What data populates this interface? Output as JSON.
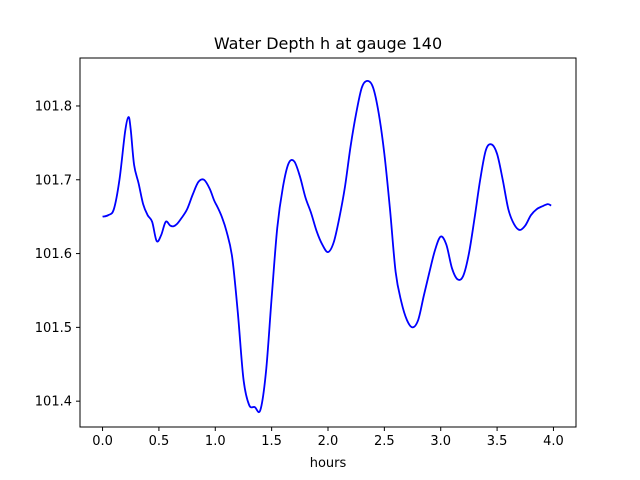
{
  "chart_data": {
    "type": "line",
    "title": "Water Depth h at gauge 140",
    "xlabel": "hours",
    "ylabel": "",
    "xlim": [
      -0.2,
      4.2
    ],
    "ylim": [
      101.365,
      101.865
    ],
    "xticks": [
      0.0,
      0.5,
      1.0,
      1.5,
      2.0,
      2.5,
      3.0,
      3.5,
      4.0
    ],
    "xtick_labels": [
      "0.0",
      "0.5",
      "1.0",
      "1.5",
      "2.0",
      "2.5",
      "3.0",
      "3.5",
      "4.0"
    ],
    "yticks": [
      101.4,
      101.5,
      101.6,
      101.7,
      101.8
    ],
    "ytick_labels": [
      "101.4",
      "101.5",
      "101.6",
      "101.7",
      "101.8"
    ],
    "grid": false,
    "series": [
      {
        "color": "#0000ff",
        "x": [
          0.0,
          0.05,
          0.1,
          0.15,
          0.2,
          0.23,
          0.25,
          0.28,
          0.32,
          0.36,
          0.4,
          0.44,
          0.48,
          0.52,
          0.56,
          0.6,
          0.63,
          0.66,
          0.7,
          0.75,
          0.8,
          0.85,
          0.9,
          0.95,
          0.99,
          1.02,
          1.06,
          1.1,
          1.15,
          1.2,
          1.25,
          1.3,
          1.35,
          1.4,
          1.45,
          1.5,
          1.55,
          1.6,
          1.65,
          1.7,
          1.75,
          1.8,
          1.85,
          1.9,
          1.95,
          2.0,
          2.05,
          2.1,
          2.15,
          2.2,
          2.25,
          2.3,
          2.35,
          2.4,
          2.45,
          2.5,
          2.55,
          2.6,
          2.65,
          2.7,
          2.75,
          2.8,
          2.85,
          2.9,
          2.95,
          3.0,
          3.05,
          3.1,
          3.15,
          3.2,
          3.25,
          3.3,
          3.35,
          3.4,
          3.45,
          3.5,
          3.55,
          3.6,
          3.65,
          3.7,
          3.75,
          3.8,
          3.85,
          3.9,
          3.95,
          3.98
        ],
        "y": [
          101.65,
          101.652,
          101.66,
          101.7,
          101.765,
          101.785,
          101.768,
          101.72,
          101.695,
          101.667,
          101.652,
          101.643,
          101.617,
          101.625,
          101.643,
          101.638,
          101.637,
          101.64,
          101.648,
          101.66,
          101.68,
          101.697,
          101.7,
          101.688,
          101.672,
          101.663,
          101.649,
          101.63,
          101.595,
          101.52,
          101.43,
          101.395,
          101.392,
          101.388,
          101.44,
          101.54,
          101.635,
          101.69,
          101.722,
          101.725,
          101.705,
          101.676,
          101.655,
          101.63,
          101.612,
          101.602,
          101.615,
          101.648,
          101.69,
          101.745,
          101.79,
          101.825,
          101.834,
          101.825,
          101.79,
          101.735,
          101.66,
          101.575,
          101.535,
          101.51,
          101.5,
          101.51,
          101.543,
          101.575,
          101.605,
          101.623,
          101.612,
          101.58,
          101.565,
          101.57,
          101.6,
          101.648,
          101.7,
          101.74,
          101.748,
          101.735,
          101.7,
          101.66,
          101.64,
          101.632,
          101.638,
          101.652,
          101.66,
          101.664,
          101.667,
          101.665
        ]
      }
    ]
  }
}
